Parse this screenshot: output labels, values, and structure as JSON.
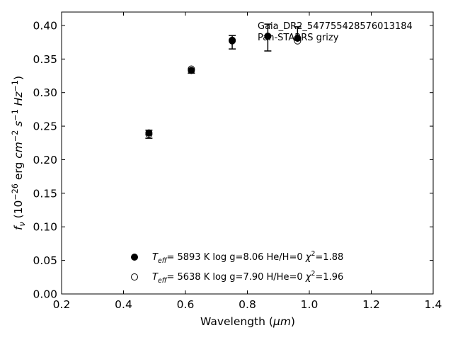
{
  "chart_data": {
    "type": "scatter",
    "xlabel": "Wavelength (μm)",
    "ylabel": "f_ν (10^-26 erg cm^-2 s^-1 Hz^-1)",
    "xlim": [
      0.2,
      1.4
    ],
    "ylim": [
      0.0,
      0.42
    ],
    "x_ticks": [
      0.2,
      0.4,
      0.6,
      0.8,
      1.0,
      1.2,
      1.4
    ],
    "y_ticks": [
      0.0,
      0.05,
      0.1,
      0.15,
      0.2,
      0.25,
      0.3,
      0.35,
      0.4
    ],
    "grid": false,
    "annotations": [
      "Gaia_DR2_547755428576013184",
      "Pan-STARRS grizy"
    ],
    "observed": {
      "x": [
        0.482,
        0.619,
        0.751,
        0.866,
        0.962
      ],
      "y": [
        0.238,
        0.332,
        0.375,
        0.382,
        0.388
      ],
      "yerr": [
        0.006,
        0.003,
        0.01,
        0.02,
        0.01
      ]
    },
    "series": [
      {
        "name": "T_eff= 5893 K  log g=8.06  He/H=0  χ²=1.88",
        "marker": "filled-circle",
        "x": [
          0.482,
          0.619,
          0.751,
          0.866,
          0.962
        ],
        "y": [
          0.24,
          0.333,
          0.377,
          0.384,
          0.381
        ]
      },
      {
        "name": "T_eff= 5638 K  log g=7.90  H/He=0  χ²=1.96",
        "marker": "open-circle",
        "x": [
          0.482,
          0.619,
          0.751,
          0.866,
          0.962
        ],
        "y": [
          0.238,
          0.335,
          0.378,
          0.384,
          0.377
        ]
      }
    ],
    "legend_position": "bottom-center"
  }
}
